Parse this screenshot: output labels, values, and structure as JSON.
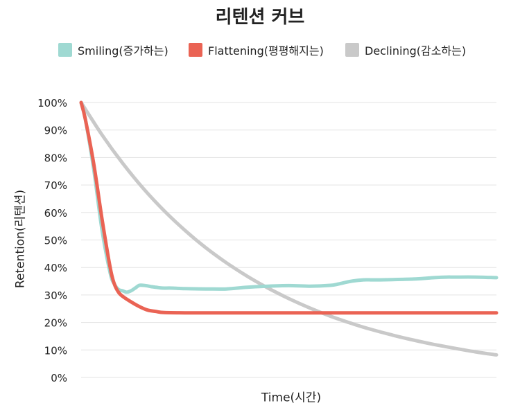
{
  "chart_data": {
    "type": "line",
    "title": "리텐션 커브",
    "xlabel": "Time(시간)",
    "ylabel": "Retention(리텐션)",
    "ylim": [
      0,
      100
    ],
    "xlim": [
      0,
      100
    ],
    "grid": true,
    "legend_position": "top",
    "y_ticks": [
      "0%",
      "10%",
      "20%",
      "30%",
      "40%",
      "50%",
      "60%",
      "70%",
      "80%",
      "90%",
      "100%"
    ],
    "y_tick_values": [
      0,
      10,
      20,
      30,
      40,
      50,
      60,
      70,
      80,
      90,
      100
    ],
    "series": [
      {
        "name": "Smiling(증가하는)",
        "color": "#9fd9d2",
        "x": [
          0,
          1,
          3,
          5,
          7,
          8,
          9,
          10,
          11,
          12,
          13,
          14,
          15,
          16,
          17,
          18,
          19,
          20,
          22,
          25,
          30,
          35,
          40,
          45,
          50,
          55,
          60,
          62,
          65,
          68,
          70,
          72,
          75,
          80,
          85,
          88,
          90,
          95,
          100
        ],
        "values": [
          100,
          94,
          76,
          54,
          38,
          34,
          32,
          31.5,
          31,
          31.5,
          32.5,
          33.5,
          33.5,
          33.3,
          33,
          32.8,
          32.6,
          32.5,
          32.5,
          32.3,
          32.2,
          32.2,
          32.8,
          33.2,
          33.4,
          33.2,
          33.5,
          34,
          35,
          35.5,
          35.5,
          35.5,
          35.6,
          35.8,
          36.3,
          36.5,
          36.5,
          36.5,
          36.3
        ]
      },
      {
        "name": "Flattening(평평해지는)",
        "color": "#ea6354",
        "x": [
          0,
          1,
          3,
          5,
          7,
          8,
          9,
          10,
          12,
          14,
          16,
          18,
          20,
          25,
          30,
          40,
          50,
          60,
          70,
          80,
          90,
          100
        ],
        "values": [
          100,
          94,
          78,
          58,
          40,
          34,
          31,
          29.5,
          27.5,
          25.8,
          24.5,
          24,
          23.6,
          23.5,
          23.5,
          23.5,
          23.5,
          23.5,
          23.5,
          23.5,
          23.5,
          23.5
        ]
      },
      {
        "name": "Declining(감소하는)",
        "color": "#c9c9c9",
        "x": [
          0,
          5,
          10,
          15,
          20,
          25,
          30,
          35,
          40,
          45,
          50,
          55,
          60,
          65,
          70,
          75,
          80,
          85,
          90,
          95,
          100
        ],
        "values": [
          100,
          88.3,
          77.9,
          68.7,
          60.6,
          53.5,
          47.2,
          41.7,
          36.8,
          32.5,
          28.7,
          25.3,
          22.3,
          19.7,
          17.4,
          15.4,
          13.6,
          12.0,
          10.6,
          9.3,
          8.2
        ]
      }
    ]
  }
}
